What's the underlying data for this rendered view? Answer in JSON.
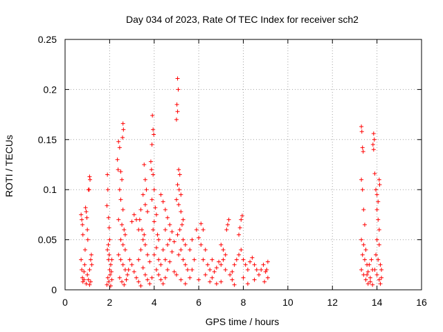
{
  "chart_data": {
    "type": "scatter",
    "title": "Day 034 of 2023, Rate Of TEC Index for receiver sch2",
    "xlabel": "GPS time / hours",
    "ylabel": "ROTI / TECUs",
    "xlim": [
      0,
      16
    ],
    "ylim": [
      0,
      0.25
    ],
    "xticks": [
      "0",
      "2",
      "4",
      "6",
      "8",
      "10",
      "12",
      "14",
      "16"
    ],
    "yticks": [
      "0",
      "0.05",
      "0.1",
      "0.15",
      "0.2",
      "0.25"
    ],
    "grid": true,
    "marker": "+",
    "color": "#ff0000",
    "series": [
      {
        "points": [
          [
            0.72,
            0.075
          ],
          [
            0.75,
            0.07
          ],
          [
            0.78,
            0.065
          ],
          [
            0.8,
            0.055
          ],
          [
            0.72,
            0.03
          ],
          [
            0.75,
            0.02
          ],
          [
            0.78,
            0.012
          ],
          [
            0.8,
            0.008
          ],
          [
            0.85,
            0.018
          ],
          [
            0.88,
            0.025
          ],
          [
            0.9,
            0.04
          ],
          [
            0.92,
            0.082
          ],
          [
            0.95,
            0.078
          ],
          [
            0.98,
            0.072
          ],
          [
            1.0,
            0.06
          ],
          [
            1.02,
            0.05
          ],
          [
            1.05,
            0.1
          ],
          [
            1.08,
            0.1
          ],
          [
            1.1,
            0.113
          ],
          [
            1.12,
            0.11
          ],
          [
            1.0,
            0.015
          ],
          [
            1.05,
            0.01
          ],
          [
            1.1,
            0.02
          ],
          [
            1.15,
            0.03
          ],
          [
            1.18,
            0.035
          ],
          [
            1.2,
            0.025
          ],
          [
            0.95,
            0.006
          ],
          [
            1.1,
            0.005
          ],
          [
            0.85,
            0.01
          ],
          [
            1.15,
            0.008
          ],
          [
            1.9,
            0.115
          ],
          [
            1.92,
            0.1
          ],
          [
            1.88,
            0.084
          ],
          [
            1.95,
            0.072
          ],
          [
            1.98,
            0.062
          ],
          [
            2.0,
            0.05
          ],
          [
            1.9,
            0.04
          ],
          [
            1.95,
            0.03
          ],
          [
            2.0,
            0.02
          ],
          [
            1.92,
            0.012
          ],
          [
            1.96,
            0.008
          ],
          [
            2.02,
            0.015
          ],
          [
            2.05,
            0.025
          ],
          [
            2.08,
            0.018
          ],
          [
            2.1,
            0.01
          ],
          [
            1.88,
            0.005
          ],
          [
            2.05,
            0.004
          ],
          [
            2.1,
            0.03
          ],
          [
            1.98,
            0.035
          ],
          [
            1.94,
            0.045
          ],
          [
            2.4,
            0.148
          ],
          [
            2.45,
            0.142
          ],
          [
            2.6,
            0.166
          ],
          [
            2.62,
            0.16
          ],
          [
            2.58,
            0.152
          ],
          [
            2.35,
            0.13
          ],
          [
            2.38,
            0.12
          ],
          [
            2.5,
            0.118
          ],
          [
            2.55,
            0.11
          ],
          [
            2.45,
            0.1
          ],
          [
            2.5,
            0.09
          ],
          [
            2.6,
            0.08
          ],
          [
            2.4,
            0.07
          ],
          [
            2.55,
            0.065
          ],
          [
            2.65,
            0.06
          ],
          [
            2.7,
            0.055
          ],
          [
            2.5,
            0.05
          ],
          [
            2.6,
            0.045
          ],
          [
            2.7,
            0.04
          ],
          [
            2.4,
            0.035
          ],
          [
            2.5,
            0.03
          ],
          [
            2.6,
            0.025
          ],
          [
            2.7,
            0.02
          ],
          [
            2.8,
            0.015
          ],
          [
            2.45,
            0.012
          ],
          [
            2.55,
            0.008
          ],
          [
            2.65,
            0.005
          ],
          [
            2.75,
            0.01
          ],
          [
            2.85,
            0.02
          ],
          [
            2.9,
            0.03
          ],
          [
            3.0,
            0.025
          ],
          [
            3.1,
            0.018
          ],
          [
            3.2,
            0.012
          ],
          [
            3.3,
            0.03
          ],
          [
            3.4,
            0.04
          ],
          [
            3.5,
            0.05
          ],
          [
            3.3,
            0.06
          ],
          [
            3.2,
            0.07
          ],
          [
            3.1,
            0.075
          ],
          [
            3.0,
            0.068
          ],
          [
            3.55,
            0.125
          ],
          [
            3.6,
            0.11
          ],
          [
            3.65,
            0.1
          ],
          [
            3.5,
            0.095
          ],
          [
            3.6,
            0.085
          ],
          [
            3.7,
            0.078
          ],
          [
            3.4,
            0.08
          ],
          [
            3.35,
            0.07
          ],
          [
            3.45,
            0.06
          ],
          [
            3.55,
            0.055
          ],
          [
            3.6,
            0.045
          ],
          [
            3.7,
            0.035
          ],
          [
            3.8,
            0.028
          ],
          [
            3.5,
            0.022
          ],
          [
            3.6,
            0.015
          ],
          [
            3.7,
            0.01
          ],
          [
            3.8,
            0.006
          ],
          [
            3.4,
            0.004
          ],
          [
            3.9,
            0.012
          ],
          [
            3.3,
            0.008
          ],
          [
            3.92,
            0.174
          ],
          [
            3.95,
            0.16
          ],
          [
            3.98,
            0.155
          ],
          [
            3.9,
            0.145
          ],
          [
            3.85,
            0.128
          ],
          [
            3.88,
            0.12
          ],
          [
            3.95,
            0.115
          ],
          [
            4.0,
            0.1
          ],
          [
            3.9,
            0.09
          ],
          [
            4.05,
            0.082
          ],
          [
            4.1,
            0.075
          ],
          [
            4.0,
            0.068
          ],
          [
            3.95,
            0.06
          ],
          [
            4.15,
            0.055
          ],
          [
            4.2,
            0.05
          ],
          [
            4.1,
            0.042
          ],
          [
            4.0,
            0.035
          ],
          [
            4.2,
            0.03
          ],
          [
            4.3,
            0.025
          ],
          [
            4.1,
            0.02
          ],
          [
            4.2,
            0.015
          ],
          [
            4.3,
            0.01
          ],
          [
            4.4,
            0.006
          ],
          [
            4.5,
            0.012
          ],
          [
            4.6,
            0.02
          ],
          [
            4.5,
            0.03
          ],
          [
            4.4,
            0.04
          ],
          [
            4.6,
            0.045
          ],
          [
            4.7,
            0.05
          ],
          [
            4.5,
            0.06
          ],
          [
            4.3,
            0.095
          ],
          [
            4.4,
            0.088
          ],
          [
            4.5,
            0.08
          ],
          [
            4.6,
            0.072
          ],
          [
            4.7,
            0.065
          ],
          [
            4.8,
            0.058
          ],
          [
            4.9,
            0.048
          ],
          [
            4.8,
            0.038
          ],
          [
            4.7,
            0.028
          ],
          [
            4.9,
            0.018
          ],
          [
            5.05,
            0.211
          ],
          [
            5.08,
            0.2
          ],
          [
            5.02,
            0.185
          ],
          [
            5.05,
            0.178
          ],
          [
            5.0,
            0.17
          ],
          [
            5.1,
            0.12
          ],
          [
            5.15,
            0.115
          ],
          [
            5.05,
            0.105
          ],
          [
            5.12,
            0.1
          ],
          [
            5.2,
            0.095
          ],
          [
            5.0,
            0.09
          ],
          [
            5.1,
            0.085
          ],
          [
            5.2,
            0.078
          ],
          [
            5.3,
            0.07
          ],
          [
            5.25,
            0.065
          ],
          [
            5.15,
            0.06
          ],
          [
            5.05,
            0.055
          ],
          [
            5.3,
            0.05
          ],
          [
            5.4,
            0.045
          ],
          [
            5.2,
            0.04
          ],
          [
            5.1,
            0.035
          ],
          [
            5.3,
            0.03
          ],
          [
            5.4,
            0.025
          ],
          [
            5.5,
            0.02
          ],
          [
            5.0,
            0.015
          ],
          [
            5.2,
            0.01
          ],
          [
            5.4,
            0.006
          ],
          [
            5.6,
            0.012
          ],
          [
            5.7,
            0.02
          ],
          [
            5.8,
            0.03
          ],
          [
            5.6,
            0.04
          ],
          [
            5.7,
            0.05
          ],
          [
            5.9,
            0.06
          ],
          [
            6.1,
            0.066
          ],
          [
            6.2,
            0.06
          ],
          [
            6.0,
            0.052
          ],
          [
            6.1,
            0.045
          ],
          [
            6.3,
            0.04
          ],
          [
            6.2,
            0.03
          ],
          [
            6.4,
            0.025
          ],
          [
            6.5,
            0.02
          ],
          [
            6.3,
            0.015
          ],
          [
            6.6,
            0.012
          ],
          [
            6.7,
            0.018
          ],
          [
            6.8,
            0.022
          ],
          [
            6.9,
            0.028
          ],
          [
            6.6,
            0.03
          ],
          [
            6.5,
            0.008
          ],
          [
            6.8,
            0.006
          ],
          [
            6.0,
            0.01
          ],
          [
            7.0,
            0.045
          ],
          [
            7.1,
            0.04
          ],
          [
            7.2,
            0.035
          ],
          [
            7.3,
            0.065
          ],
          [
            7.35,
            0.07
          ],
          [
            7.25,
            0.06
          ],
          [
            7.1,
            0.03
          ],
          [
            7.0,
            0.025
          ],
          [
            7.2,
            0.02
          ],
          [
            7.4,
            0.015
          ],
          [
            7.5,
            0.018
          ],
          [
            7.6,
            0.025
          ],
          [
            7.7,
            0.03
          ],
          [
            7.8,
            0.035
          ],
          [
            7.9,
            0.07
          ],
          [
            7.95,
            0.074
          ],
          [
            7.85,
            0.062
          ],
          [
            7.8,
            0.055
          ],
          [
            7.9,
            0.04
          ],
          [
            8.0,
            0.03
          ],
          [
            8.1,
            0.025
          ],
          [
            8.2,
            0.02
          ],
          [
            8.3,
            0.028
          ],
          [
            8.4,
            0.032
          ],
          [
            8.5,
            0.025
          ],
          [
            8.6,
            0.02
          ],
          [
            8.7,
            0.015
          ],
          [
            8.8,
            0.02
          ],
          [
            8.9,
            0.025
          ],
          [
            9.0,
            0.018
          ],
          [
            9.1,
            0.012
          ],
          [
            9.05,
            0.02
          ],
          [
            8.95,
            0.008
          ],
          [
            8.5,
            0.01
          ],
          [
            8.0,
            0.012
          ],
          [
            7.5,
            0.01
          ],
          [
            7.0,
            0.008
          ],
          [
            7.6,
            0.005
          ],
          [
            8.2,
            0.006
          ],
          [
            9.1,
            0.028
          ],
          [
            13.3,
            0.163
          ],
          [
            13.32,
            0.158
          ],
          [
            13.35,
            0.142
          ],
          [
            13.38,
            0.138
          ],
          [
            13.3,
            0.11
          ],
          [
            13.35,
            0.1
          ],
          [
            13.4,
            0.08
          ],
          [
            13.45,
            0.065
          ],
          [
            13.3,
            0.05
          ],
          [
            13.4,
            0.045
          ],
          [
            13.5,
            0.04
          ],
          [
            13.35,
            0.035
          ],
          [
            13.45,
            0.03
          ],
          [
            13.55,
            0.025
          ],
          [
            13.3,
            0.02
          ],
          [
            13.4,
            0.015
          ],
          [
            13.5,
            0.01
          ],
          [
            13.6,
            0.006
          ],
          [
            13.7,
            0.012
          ],
          [
            13.8,
            0.02
          ],
          [
            13.85,
            0.156
          ],
          [
            13.88,
            0.15
          ],
          [
            13.82,
            0.145
          ],
          [
            13.85,
            0.14
          ],
          [
            13.9,
            0.116
          ],
          [
            13.95,
            0.1
          ],
          [
            14.0,
            0.095
          ],
          [
            14.05,
            0.088
          ],
          [
            14.1,
            0.11
          ],
          [
            14.12,
            0.105
          ],
          [
            14.0,
            0.08
          ],
          [
            14.05,
            0.07
          ],
          [
            14.1,
            0.06
          ],
          [
            14.0,
            0.05
          ],
          [
            14.1,
            0.045
          ],
          [
            13.95,
            0.035
          ],
          [
            14.05,
            0.03
          ],
          [
            14.15,
            0.025
          ],
          [
            13.9,
            0.02
          ],
          [
            14.0,
            0.015
          ],
          [
            14.1,
            0.01
          ],
          [
            14.15,
            0.006
          ],
          [
            13.75,
            0.03
          ],
          [
            13.65,
            0.025
          ],
          [
            13.6,
            0.018
          ],
          [
            13.7,
            0.008
          ],
          [
            13.8,
            0.005
          ],
          [
            14.2,
            0.012
          ],
          [
            14.2,
            0.02
          ],
          [
            13.55,
            0.015
          ]
        ]
      }
    ]
  }
}
